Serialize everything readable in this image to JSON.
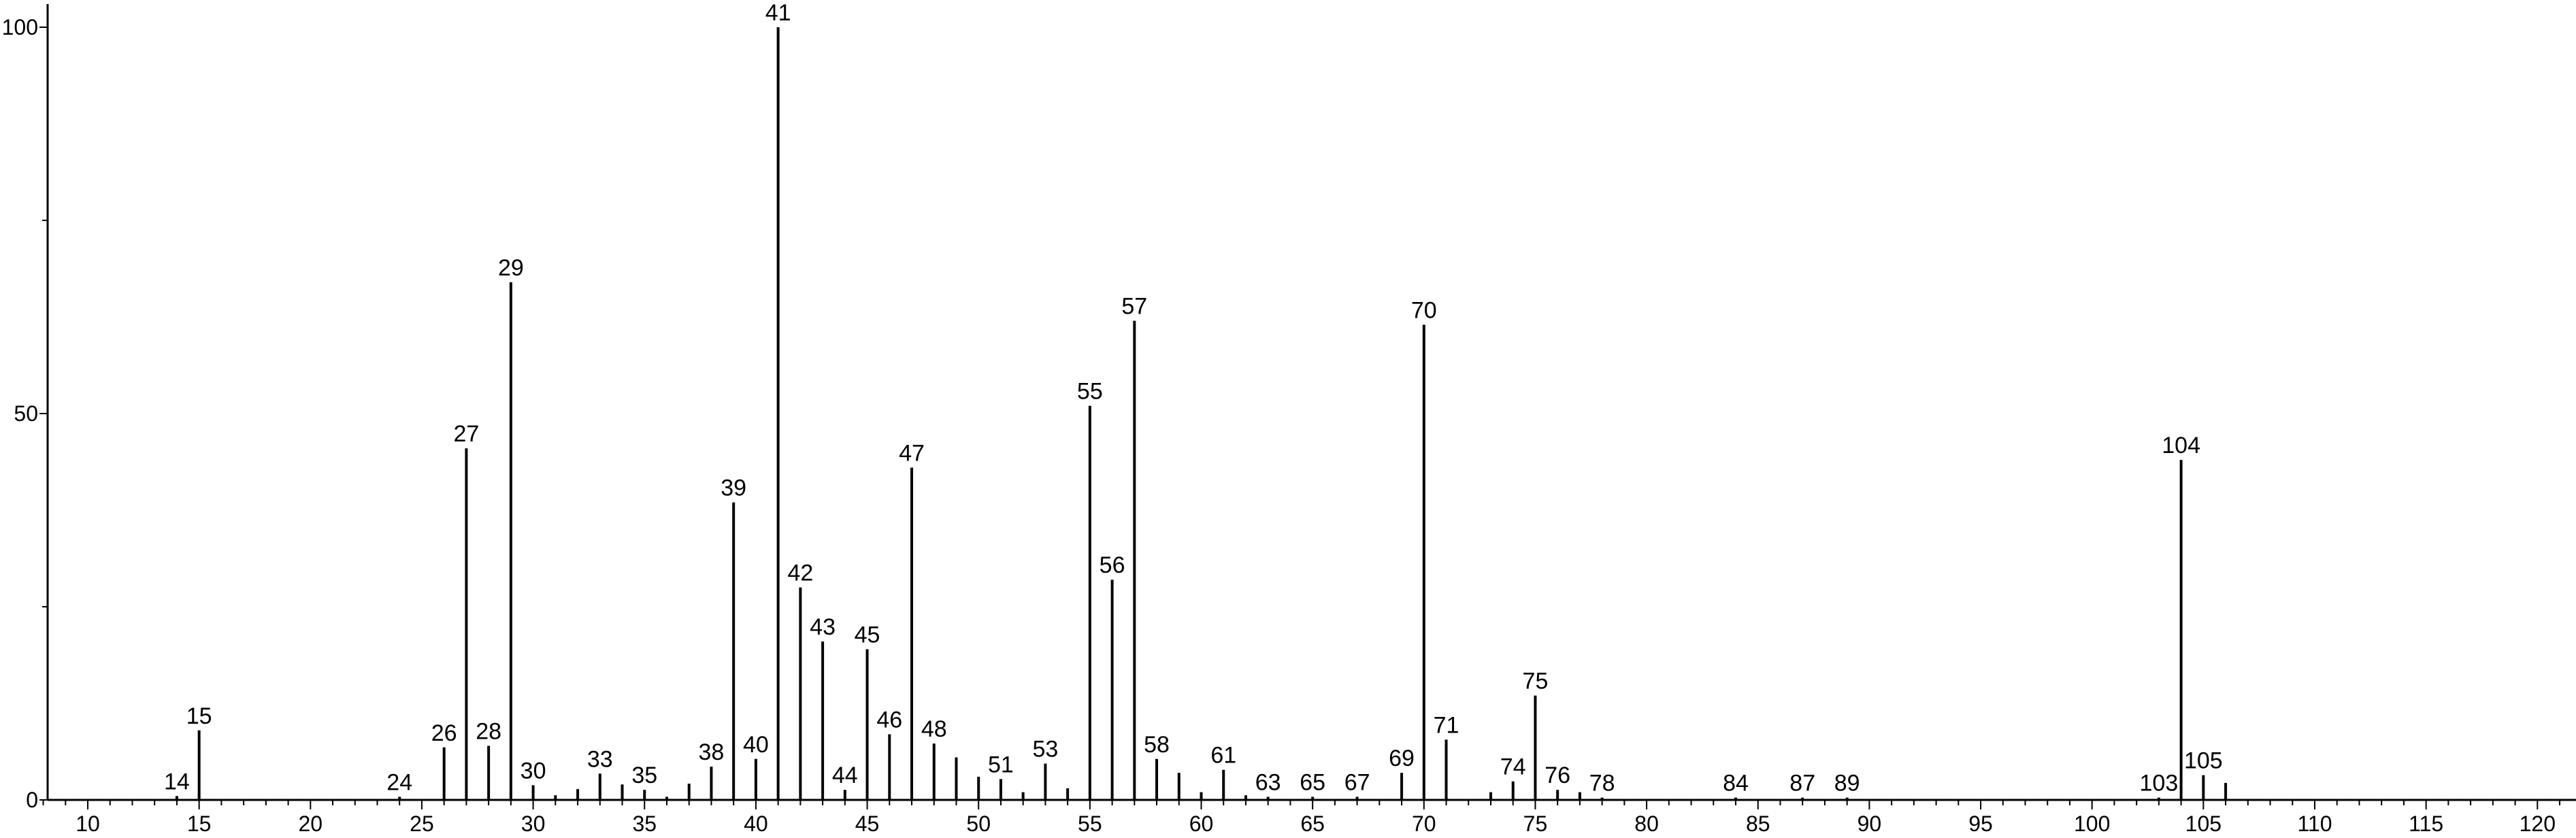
{
  "chart_data": {
    "type": "bar",
    "title": "",
    "xlabel": "",
    "ylabel": "",
    "xlim": [
      8,
      121
    ],
    "ylim": [
      0,
      103
    ],
    "grid": false,
    "x_ticks": [
      10,
      15,
      20,
      25,
      30,
      35,
      40,
      45,
      50,
      55,
      60,
      65,
      70,
      75,
      80,
      85,
      90,
      95,
      100,
      105,
      110,
      115,
      120
    ],
    "y_ticks": [
      0,
      50,
      100
    ],
    "y_minor_ticks": [
      25,
      75
    ],
    "series": [
      {
        "peaks": [
          {
            "x": 14,
            "y": 0.5,
            "label": "14"
          },
          {
            "x": 15,
            "y": 9,
            "label": "15"
          },
          {
            "x": 24,
            "y": 0.4,
            "label": "24"
          },
          {
            "x": 26,
            "y": 6.8,
            "label": "26"
          },
          {
            "x": 27,
            "y": 45.5,
            "label": "27"
          },
          {
            "x": 28,
            "y": 7,
            "label": "28"
          },
          {
            "x": 29,
            "y": 67,
            "label": "29"
          },
          {
            "x": 30,
            "y": 1.9,
            "label": "30"
          },
          {
            "x": 31,
            "y": 0.6,
            "label": ""
          },
          {
            "x": 32,
            "y": 1.4,
            "label": ""
          },
          {
            "x": 33,
            "y": 3.4,
            "label": "33"
          },
          {
            "x": 34,
            "y": 2.0,
            "label": ""
          },
          {
            "x": 35,
            "y": 1.3,
            "label": "35"
          },
          {
            "x": 36,
            "y": 0.4,
            "label": ""
          },
          {
            "x": 37,
            "y": 2.1,
            "label": ""
          },
          {
            "x": 38,
            "y": 4.3,
            "label": "38"
          },
          {
            "x": 39,
            "y": 38.5,
            "label": "39"
          },
          {
            "x": 40,
            "y": 5.3,
            "label": "40"
          },
          {
            "x": 41,
            "y": 100,
            "label": "41"
          },
          {
            "x": 42,
            "y": 27.5,
            "label": "42"
          },
          {
            "x": 43,
            "y": 20.5,
            "label": "43"
          },
          {
            "x": 44,
            "y": 1.3,
            "label": "44"
          },
          {
            "x": 45,
            "y": 19.5,
            "label": "45"
          },
          {
            "x": 46,
            "y": 8.5,
            "label": "46"
          },
          {
            "x": 47,
            "y": 43,
            "label": "47"
          },
          {
            "x": 48,
            "y": 7.3,
            "label": "48"
          },
          {
            "x": 49,
            "y": 5.5,
            "label": ""
          },
          {
            "x": 50,
            "y": 3,
            "label": ""
          },
          {
            "x": 51,
            "y": 2.7,
            "label": "51"
          },
          {
            "x": 52,
            "y": 1,
            "label": ""
          },
          {
            "x": 53,
            "y": 4.7,
            "label": "53"
          },
          {
            "x": 54,
            "y": 1.5,
            "label": ""
          },
          {
            "x": 55,
            "y": 51,
            "label": "55"
          },
          {
            "x": 56,
            "y": 28.5,
            "label": "56"
          },
          {
            "x": 57,
            "y": 62,
            "label": "57"
          },
          {
            "x": 58,
            "y": 5.3,
            "label": "58"
          },
          {
            "x": 59,
            "y": 3.5,
            "label": ""
          },
          {
            "x": 60,
            "y": 1,
            "label": ""
          },
          {
            "x": 61,
            "y": 3.9,
            "label": "61"
          },
          {
            "x": 62,
            "y": 0.6,
            "label": ""
          },
          {
            "x": 63,
            "y": 0.4,
            "label": "63"
          },
          {
            "x": 65,
            "y": 0.4,
            "label": "65"
          },
          {
            "x": 67,
            "y": 0.4,
            "label": "67"
          },
          {
            "x": 69,
            "y": 3.5,
            "label": "69"
          },
          {
            "x": 70,
            "y": 61.5,
            "label": "70"
          },
          {
            "x": 71,
            "y": 7.8,
            "label": "71"
          },
          {
            "x": 73,
            "y": 1,
            "label": ""
          },
          {
            "x": 74,
            "y": 2.4,
            "label": "74"
          },
          {
            "x": 75,
            "y": 13.5,
            "label": "75"
          },
          {
            "x": 76,
            "y": 1.3,
            "label": "76"
          },
          {
            "x": 77,
            "y": 1.0,
            "label": ""
          },
          {
            "x": 78,
            "y": 0.3,
            "label": "78"
          },
          {
            "x": 84,
            "y": 0.3,
            "label": "84"
          },
          {
            "x": 87,
            "y": 0.3,
            "label": "87"
          },
          {
            "x": 89,
            "y": 0.3,
            "label": "89"
          },
          {
            "x": 103,
            "y": 0.3,
            "label": "103"
          },
          {
            "x": 104,
            "y": 44,
            "label": "104"
          },
          {
            "x": 105,
            "y": 3.2,
            "label": "105"
          },
          {
            "x": 106,
            "y": 2.2,
            "label": ""
          }
        ]
      }
    ]
  }
}
